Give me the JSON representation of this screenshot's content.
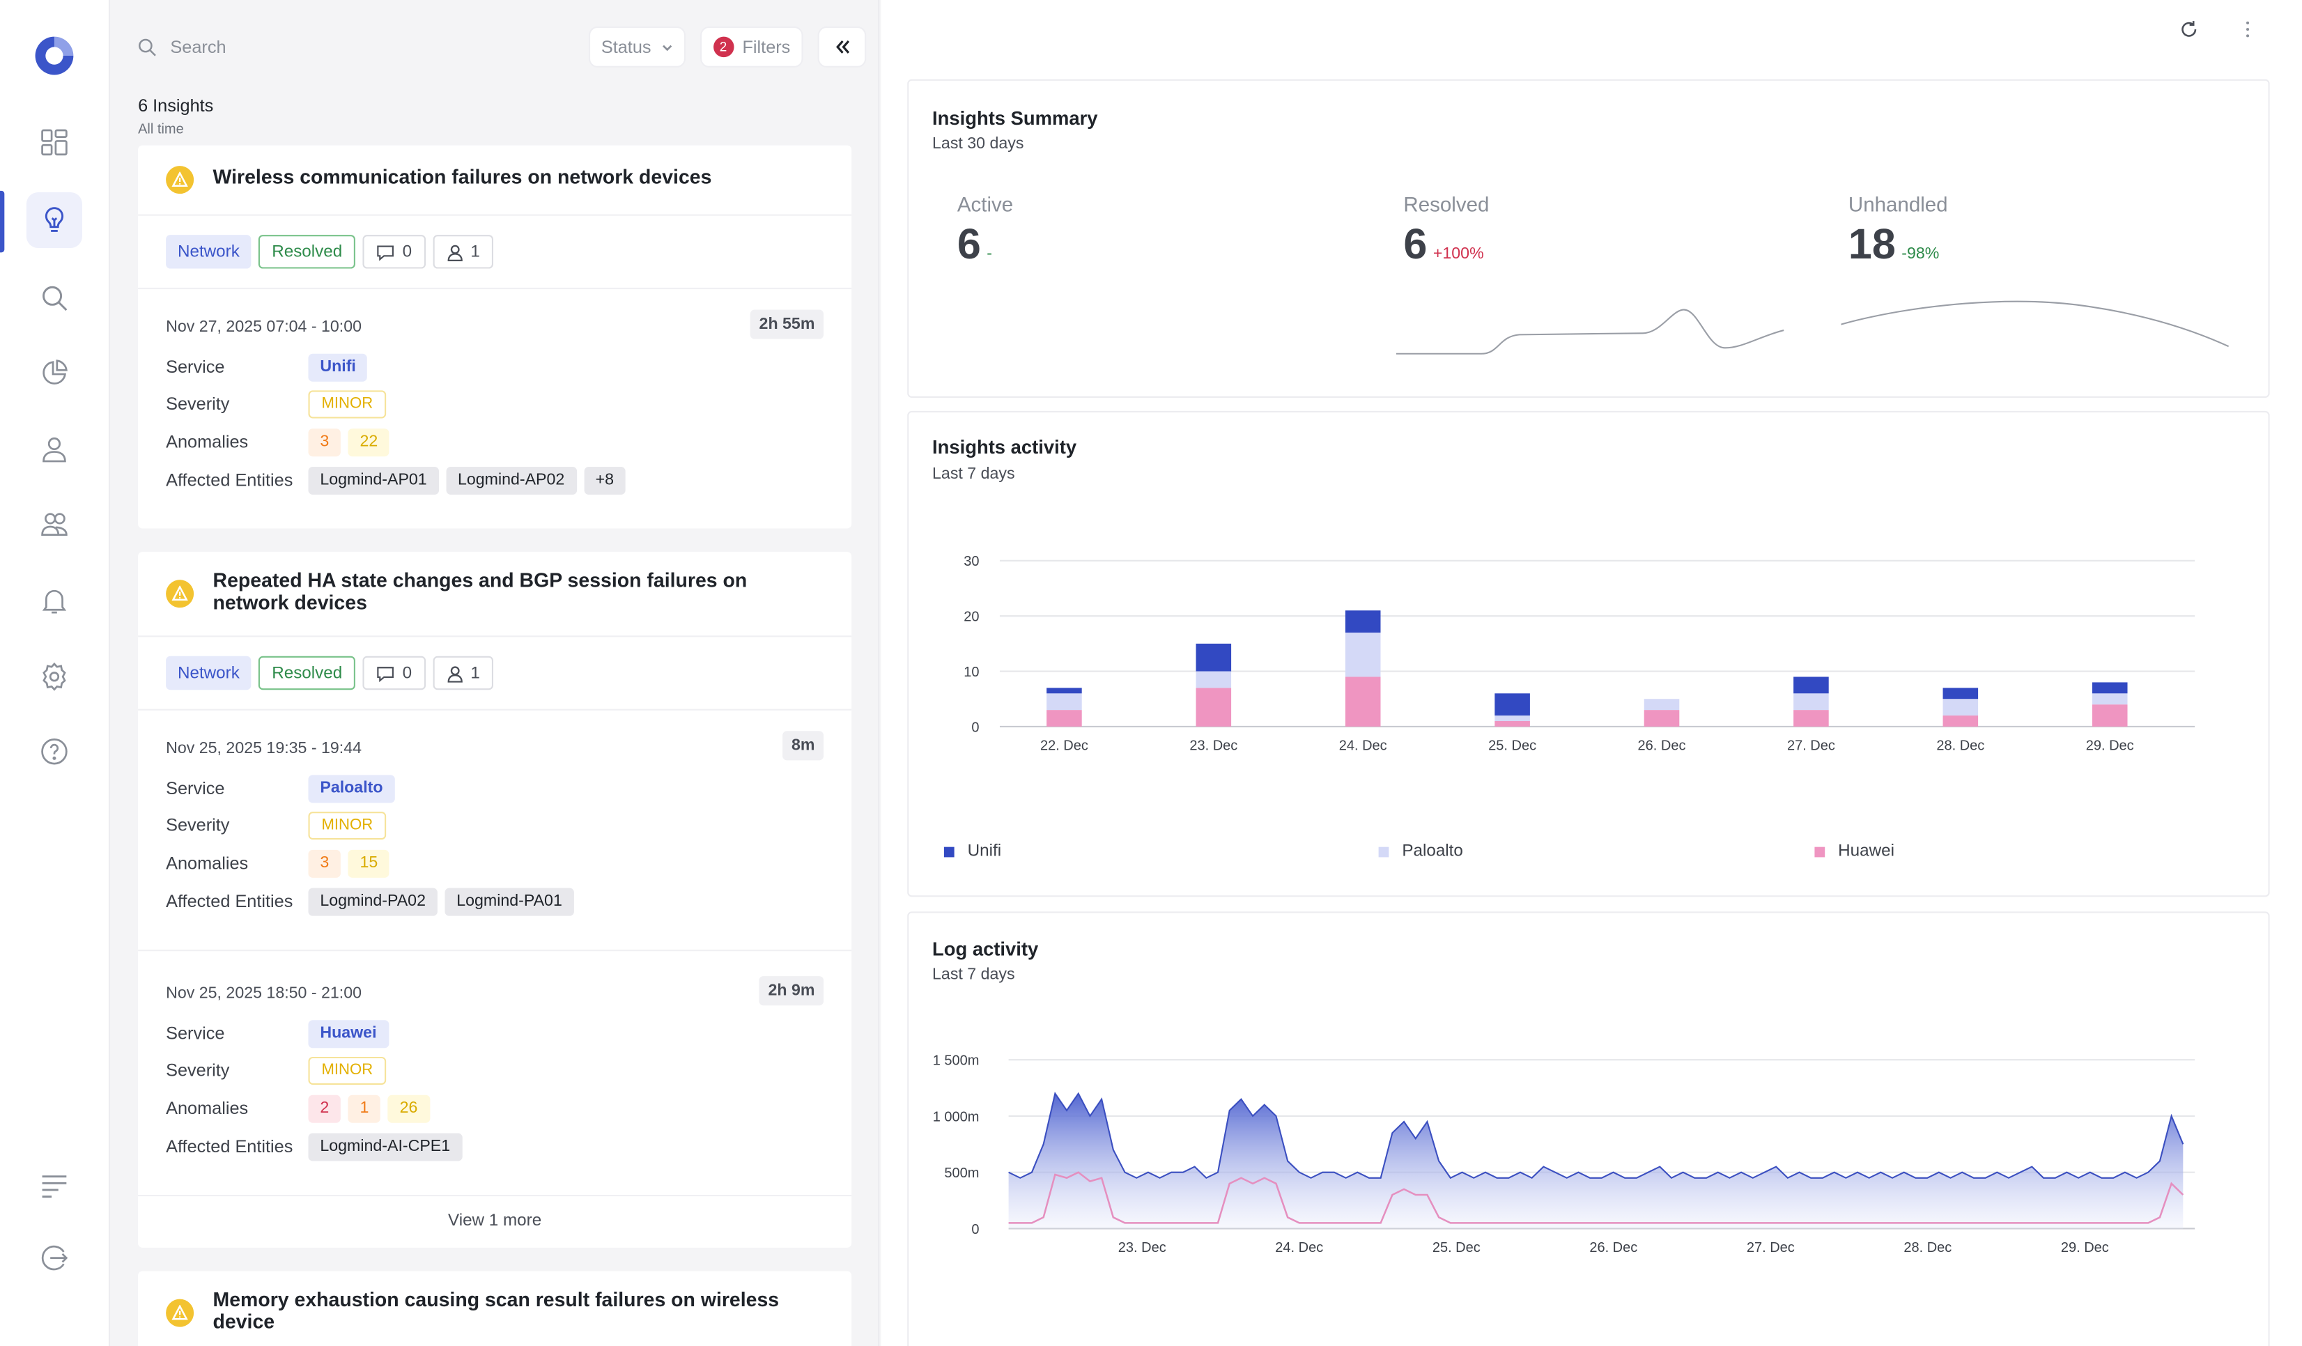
{
  "sidebar": {
    "logo": "logmind-logo",
    "items": [
      {
        "name": "dashboard-icon",
        "active": false
      },
      {
        "name": "lightbulb-icon",
        "active": true
      },
      {
        "name": "search-icon",
        "active": false
      },
      {
        "name": "pie-chart-icon",
        "active": false
      },
      {
        "name": "user-icon",
        "active": false
      },
      {
        "name": "users-icon",
        "active": false
      },
      {
        "name": "bell-icon",
        "active": false
      },
      {
        "name": "gear-icon",
        "active": false
      },
      {
        "name": "help-icon",
        "active": false
      }
    ],
    "bottom": [
      "menu-icon",
      "logout-icon"
    ],
    "accent": "#3b55c9"
  },
  "list": {
    "search_placeholder": "Search",
    "status_label": "Status",
    "filters_label": "Filters",
    "filters_count": "2",
    "count_label": "6 Insights",
    "range_label": "All time",
    "cards": [
      {
        "title": "Wireless communication failures on network devices",
        "category": "Network",
        "state": "Resolved",
        "comments": "0",
        "assignees": "1",
        "occurrences": [
          {
            "date": "Nov 27, 2025 07:04 - 10:00",
            "duration": "2h 55m",
            "service": "Unifi",
            "severity": "MINOR",
            "anomalies": [
              {
                "value": "3",
                "tone": "orange"
              },
              {
                "value": "22",
                "tone": "yellow"
              }
            ],
            "entities": [
              "Logmind-AP01",
              "Logmind-AP02",
              "+8"
            ]
          }
        ]
      },
      {
        "title": "Repeated HA state changes and BGP session failures on network devices",
        "category": "Network",
        "state": "Resolved",
        "comments": "0",
        "assignees": "1",
        "occurrences": [
          {
            "date": "Nov 25, 2025 19:35 - 19:44",
            "duration": "8m",
            "service": "Paloalto",
            "severity": "MINOR",
            "anomalies": [
              {
                "value": "3",
                "tone": "orange"
              },
              {
                "value": "15",
                "tone": "yellow"
              }
            ],
            "entities": [
              "Logmind-PA02",
              "Logmind-PA01"
            ]
          },
          {
            "date": "Nov 25, 2025 18:50 - 21:00",
            "duration": "2h 9m",
            "service": "Huawei",
            "severity": "MINOR",
            "anomalies": [
              {
                "value": "2",
                "tone": "red"
              },
              {
                "value": "1",
                "tone": "orange"
              },
              {
                "value": "26",
                "tone": "yellow"
              }
            ],
            "entities": [
              "Logmind-AI-CPE1"
            ]
          }
        ],
        "view_more": "View 1 more"
      },
      {
        "title": "Memory exhaustion causing scan result failures on wireless device"
      }
    ],
    "row_labels": {
      "service": "Service",
      "severity": "Severity",
      "anomalies": "Anomalies",
      "entities": "Affected Entities"
    }
  },
  "summary": {
    "title": "Insights Summary",
    "subtitle": "Last 30 days",
    "metrics": [
      {
        "label": "Active",
        "value": "6",
        "delta": "-",
        "delta_color": "#2e8b4a"
      },
      {
        "label": "Resolved",
        "value": "6",
        "delta": "+100%",
        "delta_color": "#d0314e"
      },
      {
        "label": "Unhandled",
        "value": "18",
        "delta": "-98%",
        "delta_color": "#2e8b4a"
      }
    ]
  },
  "activity": {
    "title": "Insights activity",
    "subtitle": "Last 7 days"
  },
  "log_activity": {
    "title": "Log activity",
    "subtitle": "Last 7 days"
  },
  "chart_data": [
    {
      "type": "bar",
      "stacked": true,
      "categories": [
        "22. Dec",
        "23. Dec",
        "24. Dec",
        "25. Dec",
        "26. Dec",
        "27. Dec",
        "28. Dec",
        "29. Dec"
      ],
      "yticks": [
        "0",
        "10",
        "20",
        "30"
      ],
      "ylim": [
        0,
        30
      ],
      "grid": true,
      "legend_position": "bottom",
      "series": [
        {
          "name": "Huawei",
          "color": "#ef95c1",
          "values": [
            3,
            7,
            9,
            1,
            3,
            3,
            2,
            4
          ]
        },
        {
          "name": "Paloalto",
          "color": "#d4d9f7",
          "values": [
            3,
            3,
            8,
            1,
            2,
            3,
            3,
            2
          ]
        },
        {
          "name": "Unifi",
          "color": "#3249c2",
          "values": [
            1,
            5,
            4,
            4,
            0,
            3,
            2,
            2
          ]
        }
      ]
    },
    {
      "type": "area",
      "x_ticks": [
        "23. Dec",
        "24. Dec",
        "25. Dec",
        "26. Dec",
        "27. Dec",
        "28. Dec",
        "29. Dec"
      ],
      "yticks": [
        "0",
        "500m",
        "1 000m",
        "1 500m"
      ],
      "ylim": [
        0,
        1.5
      ],
      "grid": true,
      "series": [
        {
          "name": "",
          "color": "#4a5fcf",
          "values": [
            0.5,
            0.45,
            0.5,
            0.75,
            1.2,
            1.05,
            1.2,
            1.0,
            1.15,
            0.7,
            0.5,
            0.45,
            0.5,
            0.45,
            0.5,
            0.5,
            0.55,
            0.45,
            0.5,
            1.05,
            1.15,
            1.0,
            1.1,
            1.0,
            0.6,
            0.5,
            0.45,
            0.5,
            0.5,
            0.45,
            0.5,
            0.45,
            0.45,
            0.85,
            0.95,
            0.8,
            0.95,
            0.6,
            0.45,
            0.5,
            0.45,
            0.5,
            0.45,
            0.45,
            0.5,
            0.45,
            0.55,
            0.5,
            0.45,
            0.5,
            0.45,
            0.45,
            0.5,
            0.45,
            0.45,
            0.5,
            0.55,
            0.45,
            0.5,
            0.45,
            0.45,
            0.5,
            0.45,
            0.5,
            0.45,
            0.5,
            0.55,
            0.45,
            0.5,
            0.45,
            0.45,
            0.5,
            0.45,
            0.5,
            0.45,
            0.5,
            0.45,
            0.5,
            0.45,
            0.45,
            0.5,
            0.45,
            0.5,
            0.45,
            0.45,
            0.5,
            0.45,
            0.5,
            0.55,
            0.45,
            0.45,
            0.5,
            0.45,
            0.5,
            0.45,
            0.45,
            0.5,
            0.45,
            0.5,
            0.6,
            1.0,
            0.75
          ]
        },
        {
          "name": "",
          "color": "#e58fbf",
          "values": [
            0.05,
            0.05,
            0.05,
            0.1,
            0.48,
            0.45,
            0.5,
            0.42,
            0.45,
            0.1,
            0.05,
            0.05,
            0.05,
            0.05,
            0.05,
            0.05,
            0.05,
            0.05,
            0.05,
            0.4,
            0.45,
            0.4,
            0.45,
            0.4,
            0.1,
            0.05,
            0.05,
            0.05,
            0.05,
            0.05,
            0.05,
            0.05,
            0.05,
            0.3,
            0.35,
            0.3,
            0.3,
            0.1,
            0.05,
            0.05,
            0.05,
            0.05,
            0.05,
            0.05,
            0.05,
            0.05,
            0.05,
            0.05,
            0.05,
            0.05,
            0.05,
            0.05,
            0.05,
            0.05,
            0.05,
            0.05,
            0.05,
            0.05,
            0.05,
            0.05,
            0.05,
            0.05,
            0.05,
            0.05,
            0.05,
            0.05,
            0.05,
            0.05,
            0.05,
            0.05,
            0.05,
            0.05,
            0.05,
            0.05,
            0.05,
            0.05,
            0.05,
            0.05,
            0.05,
            0.05,
            0.05,
            0.05,
            0.05,
            0.05,
            0.05,
            0.05,
            0.05,
            0.05,
            0.05,
            0.05,
            0.05,
            0.05,
            0.05,
            0.05,
            0.05,
            0.05,
            0.05,
            0.05,
            0.05,
            0.1,
            0.4,
            0.3
          ]
        }
      ]
    }
  ]
}
